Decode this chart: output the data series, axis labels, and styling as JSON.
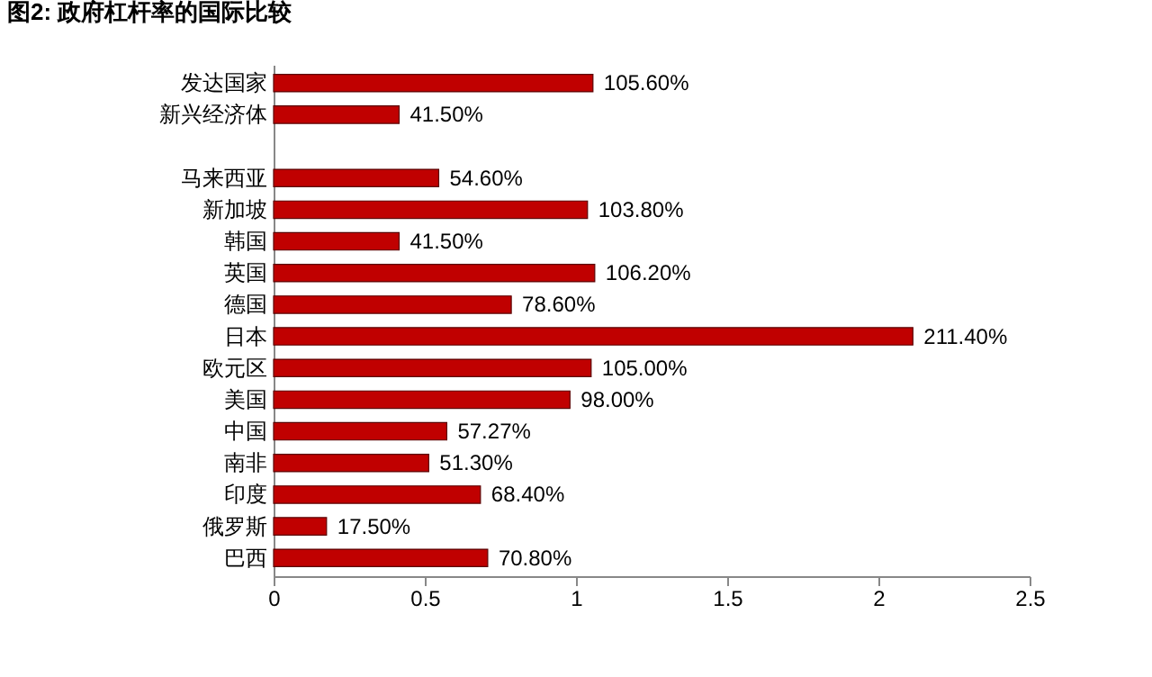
{
  "chart_data": {
    "type": "bar",
    "orientation": "horizontal",
    "title": "图2:    政府杠杆率的国际比较",
    "categories": [
      "发达国家",
      "新兴经济体",
      null,
      "马来西亚",
      "新加坡",
      "韩国",
      "英国",
      "德国",
      "日本",
      "欧元区",
      "美国",
      "中国",
      "南非",
      "印度",
      "俄罗斯",
      "巴西"
    ],
    "values": [
      1.056,
      0.415,
      null,
      0.546,
      1.038,
      0.415,
      1.062,
      0.786,
      2.114,
      1.05,
      0.98,
      0.5727,
      0.513,
      0.684,
      0.175,
      0.708
    ],
    "value_labels": [
      "105.60%",
      "41.50%",
      null,
      "54.60%",
      "103.80%",
      "41.50%",
      "106.20%",
      "78.60%",
      "211.40%",
      "105.00%",
      "98.00%",
      "57.27%",
      "51.30%",
      "68.40%",
      "17.50%",
      "70.80%"
    ],
    "color": "#c00000",
    "xlim": [
      0,
      2.5
    ],
    "xticks": [
      0,
      0.5,
      1,
      1.5,
      2,
      2.5
    ]
  }
}
